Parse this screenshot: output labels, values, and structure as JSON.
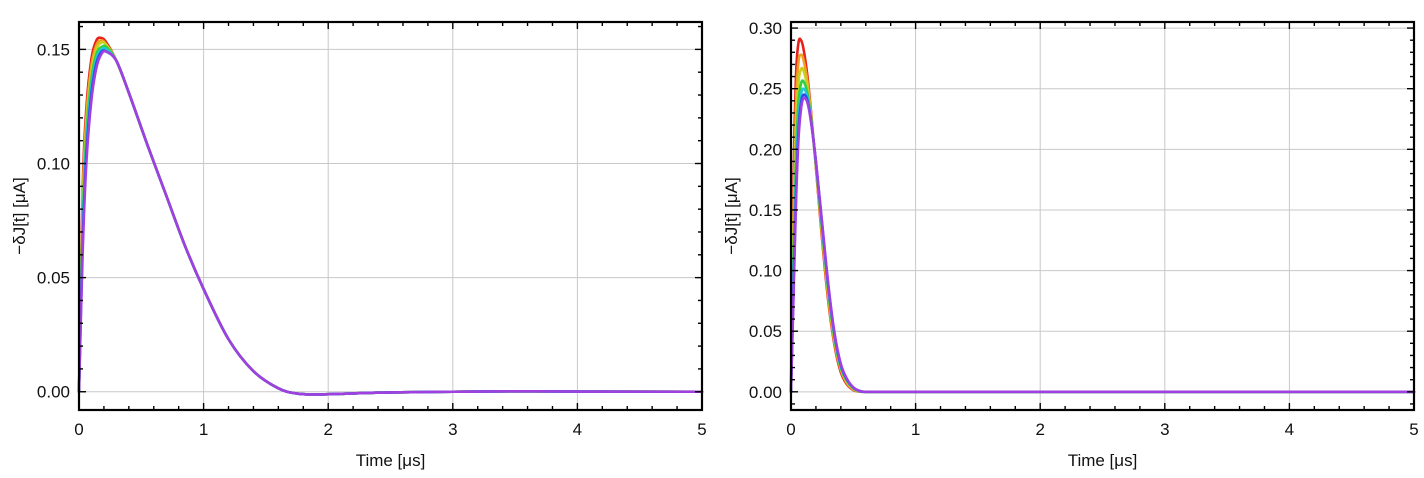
{
  "chart_data": [
    {
      "type": "line",
      "xlabel": "Time [μs]",
      "ylabel": "−δJ[t] [μA]",
      "xlim": [
        0,
        5
      ],
      "ylim": [
        -0.008,
        0.162
      ],
      "xticks": [
        0,
        1,
        2,
        3,
        4,
        5
      ],
      "xtick_labels": [
        "0",
        "1",
        "2",
        "3",
        "4",
        "5"
      ],
      "yticks": [
        0,
        0.05,
        0.1,
        0.15
      ],
      "ytick_labels": [
        "0.00",
        "0.05",
        "0.10",
        "0.15"
      ],
      "grid": true,
      "legend": "none",
      "series": [
        {
          "color": "#e8201c",
          "x": [
            0,
            0.03,
            0.06,
            0.1,
            0.14,
            0.18,
            0.22,
            0.3,
            0.4,
            0.55,
            0.7,
            0.85,
            1.0,
            1.2,
            1.4,
            1.6,
            1.75,
            1.9,
            2.1,
            2.5,
            3.0,
            3.5,
            4.0,
            5.0
          ],
          "values": [
            0,
            0.09,
            0.125,
            0.146,
            0.154,
            0.155,
            0.153,
            0.145,
            0.131,
            0.108,
            0.086,
            0.064,
            0.045,
            0.023,
            0.009,
            0.0015,
            -0.0008,
            -0.0012,
            -0.0009,
            -0.0003,
            0,
            0.0002,
            0.0001,
            0
          ]
        },
        {
          "color": "#f0a020",
          "x": [
            0,
            0.03,
            0.06,
            0.1,
            0.14,
            0.18,
            0.22,
            0.3,
            0.4,
            0.55,
            0.7,
            0.85,
            1.0,
            1.2,
            1.4,
            1.6,
            1.75,
            1.9,
            2.1,
            2.5,
            3.0,
            3.5,
            4.0,
            5.0
          ],
          "values": [
            0,
            0.085,
            0.121,
            0.143,
            0.152,
            0.154,
            0.152,
            0.145,
            0.131,
            0.108,
            0.086,
            0.064,
            0.045,
            0.023,
            0.009,
            0.0015,
            -0.0008,
            -0.0012,
            -0.0009,
            -0.0003,
            0,
            0.0002,
            0.0001,
            0
          ]
        },
        {
          "color": "#c8d020",
          "x": [
            0,
            0.03,
            0.06,
            0.1,
            0.14,
            0.18,
            0.22,
            0.3,
            0.4,
            0.55,
            0.7,
            0.85,
            1.0,
            1.2,
            1.4,
            1.6,
            1.75,
            1.9,
            2.1,
            2.5,
            3.0,
            3.5,
            4.0,
            5.0
          ],
          "values": [
            0,
            0.08,
            0.117,
            0.14,
            0.15,
            0.153,
            0.152,
            0.145,
            0.131,
            0.108,
            0.086,
            0.064,
            0.045,
            0.023,
            0.009,
            0.0015,
            -0.0008,
            -0.0012,
            -0.0009,
            -0.0003,
            0,
            0.0002,
            0.0001,
            0
          ]
        },
        {
          "color": "#30d040",
          "x": [
            0,
            0.03,
            0.06,
            0.1,
            0.14,
            0.18,
            0.22,
            0.3,
            0.4,
            0.55,
            0.7,
            0.85,
            1.0,
            1.2,
            1.4,
            1.6,
            1.75,
            1.9,
            2.1,
            2.5,
            3.0,
            3.5,
            4.0,
            5.0
          ],
          "values": [
            0,
            0.075,
            0.113,
            0.137,
            0.148,
            0.151,
            0.151,
            0.145,
            0.131,
            0.108,
            0.086,
            0.064,
            0.045,
            0.023,
            0.009,
            0.0015,
            -0.0008,
            -0.0012,
            -0.0009,
            -0.0003,
            0,
            0.0002,
            0.0001,
            0
          ]
        },
        {
          "color": "#20c8d8",
          "x": [
            0,
            0.03,
            0.06,
            0.1,
            0.14,
            0.18,
            0.22,
            0.3,
            0.4,
            0.55,
            0.7,
            0.85,
            1.0,
            1.2,
            1.4,
            1.6,
            1.75,
            1.9,
            2.1,
            2.5,
            3.0,
            3.5,
            4.0,
            5.0
          ],
          "values": [
            0,
            0.07,
            0.109,
            0.134,
            0.146,
            0.15,
            0.15,
            0.145,
            0.131,
            0.108,
            0.086,
            0.064,
            0.045,
            0.023,
            0.009,
            0.0015,
            -0.0008,
            -0.0012,
            -0.0009,
            -0.0003,
            0,
            0.0002,
            0.0001,
            0
          ]
        },
        {
          "color": "#2850e8",
          "x": [
            0,
            0.03,
            0.06,
            0.1,
            0.14,
            0.18,
            0.22,
            0.3,
            0.4,
            0.55,
            0.7,
            0.85,
            1.0,
            1.2,
            1.4,
            1.6,
            1.75,
            1.9,
            2.1,
            2.5,
            3.0,
            3.5,
            4.0,
            5.0
          ],
          "values": [
            0,
            0.066,
            0.105,
            0.131,
            0.144,
            0.149,
            0.149,
            0.145,
            0.131,
            0.108,
            0.086,
            0.064,
            0.045,
            0.023,
            0.009,
            0.0015,
            -0.0008,
            -0.0012,
            -0.0009,
            -0.0003,
            0,
            0.0002,
            0.0001,
            0
          ]
        },
        {
          "color": "#a040e0",
          "x": [
            0,
            0.03,
            0.06,
            0.1,
            0.14,
            0.18,
            0.22,
            0.3,
            0.4,
            0.55,
            0.7,
            0.85,
            1.0,
            1.2,
            1.4,
            1.6,
            1.75,
            1.9,
            2.1,
            2.5,
            3.0,
            3.5,
            4.0,
            5.0
          ],
          "values": [
            0,
            0.062,
            0.101,
            0.128,
            0.142,
            0.148,
            0.149,
            0.145,
            0.131,
            0.108,
            0.086,
            0.064,
            0.045,
            0.023,
            0.009,
            0.0015,
            -0.0008,
            -0.0012,
            -0.0009,
            -0.0003,
            0,
            0.0002,
            0.0001,
            0
          ]
        }
      ]
    },
    {
      "type": "line",
      "xlabel": "Time [μs]",
      "ylabel": "−δJ[t] [μA]",
      "xlim": [
        0,
        5
      ],
      "ylim": [
        -0.015,
        0.305
      ],
      "xticks": [
        0,
        1,
        2,
        3,
        4,
        5
      ],
      "xtick_labels": [
        "0",
        "1",
        "2",
        "3",
        "4",
        "5"
      ],
      "yticks": [
        0,
        0.05,
        0.1,
        0.15,
        0.2,
        0.25,
        0.3
      ],
      "ytick_labels": [
        "0.00",
        "0.05",
        "0.10",
        "0.15",
        "0.20",
        "0.25",
        "0.30"
      ],
      "grid": true,
      "legend": "none",
      "series": [
        {
          "color": "#e8201c",
          "x": [
            0,
            0.02,
            0.04,
            0.06,
            0.08,
            0.1,
            0.13,
            0.16,
            0.2,
            0.25,
            0.3,
            0.35,
            0.4,
            0.45,
            0.5,
            0.55,
            0.6,
            0.8,
            1.0,
            5.0
          ],
          "values": [
            0,
            0.17,
            0.26,
            0.288,
            0.29,
            0.283,
            0.262,
            0.232,
            0.185,
            0.125,
            0.074,
            0.038,
            0.016,
            0.006,
            0.0015,
            0.0002,
            0,
            0,
            0,
            0
          ]
        },
        {
          "color": "#f0a020",
          "x": [
            0,
            0.02,
            0.04,
            0.06,
            0.08,
            0.1,
            0.13,
            0.16,
            0.2,
            0.25,
            0.3,
            0.35,
            0.4,
            0.45,
            0.5,
            0.55,
            0.6,
            0.8,
            1.0,
            5.0
          ],
          "values": [
            0,
            0.15,
            0.238,
            0.272,
            0.278,
            0.274,
            0.257,
            0.23,
            0.186,
            0.128,
            0.077,
            0.04,
            0.018,
            0.007,
            0.002,
            0.0003,
            0,
            0,
            0,
            0
          ]
        },
        {
          "color": "#c8d020",
          "x": [
            0,
            0.02,
            0.04,
            0.06,
            0.08,
            0.1,
            0.13,
            0.16,
            0.2,
            0.25,
            0.3,
            0.35,
            0.4,
            0.45,
            0.5,
            0.55,
            0.6,
            0.8,
            1.0,
            5.0
          ],
          "values": [
            0,
            0.13,
            0.215,
            0.255,
            0.266,
            0.265,
            0.252,
            0.228,
            0.187,
            0.131,
            0.08,
            0.042,
            0.019,
            0.008,
            0.0025,
            0.0004,
            0,
            0,
            0,
            0
          ]
        },
        {
          "color": "#30d040",
          "x": [
            0,
            0.02,
            0.04,
            0.06,
            0.08,
            0.1,
            0.13,
            0.16,
            0.2,
            0.25,
            0.3,
            0.35,
            0.4,
            0.45,
            0.5,
            0.55,
            0.6,
            0.8,
            1.0,
            5.0
          ],
          "values": [
            0,
            0.11,
            0.192,
            0.238,
            0.254,
            0.256,
            0.247,
            0.226,
            0.188,
            0.134,
            0.083,
            0.044,
            0.02,
            0.009,
            0.003,
            0.0005,
            0,
            0,
            0,
            0
          ]
        },
        {
          "color": "#20c8d8",
          "x": [
            0,
            0.02,
            0.04,
            0.06,
            0.08,
            0.1,
            0.13,
            0.16,
            0.2,
            0.25,
            0.3,
            0.35,
            0.4,
            0.45,
            0.5,
            0.55,
            0.6,
            0.8,
            1.0,
            5.0
          ],
          "values": [
            0,
            0.095,
            0.175,
            0.225,
            0.245,
            0.25,
            0.244,
            0.225,
            0.189,
            0.136,
            0.085,
            0.046,
            0.021,
            0.0095,
            0.0032,
            0.0006,
            0,
            0,
            0,
            0
          ]
        },
        {
          "color": "#2850e8",
          "x": [
            0,
            0.02,
            0.04,
            0.06,
            0.08,
            0.1,
            0.13,
            0.16,
            0.2,
            0.25,
            0.3,
            0.35,
            0.4,
            0.45,
            0.5,
            0.55,
            0.6,
            0.8,
            1.0,
            5.0
          ],
          "values": [
            0,
            0.085,
            0.163,
            0.215,
            0.238,
            0.245,
            0.241,
            0.224,
            0.19,
            0.138,
            0.087,
            0.047,
            0.022,
            0.01,
            0.0035,
            0.0007,
            0,
            0,
            0,
            0
          ]
        },
        {
          "color": "#a040e0",
          "x": [
            0,
            0.02,
            0.04,
            0.06,
            0.08,
            0.1,
            0.13,
            0.16,
            0.2,
            0.25,
            0.3,
            0.35,
            0.4,
            0.45,
            0.5,
            0.55,
            0.6,
            0.8,
            1.0,
            5.0
          ],
          "values": [
            0,
            0.078,
            0.155,
            0.208,
            0.233,
            0.242,
            0.239,
            0.223,
            0.19,
            0.139,
            0.088,
            0.048,
            0.023,
            0.0105,
            0.0037,
            0.0008,
            0,
            0,
            0,
            0
          ]
        }
      ]
    }
  ]
}
